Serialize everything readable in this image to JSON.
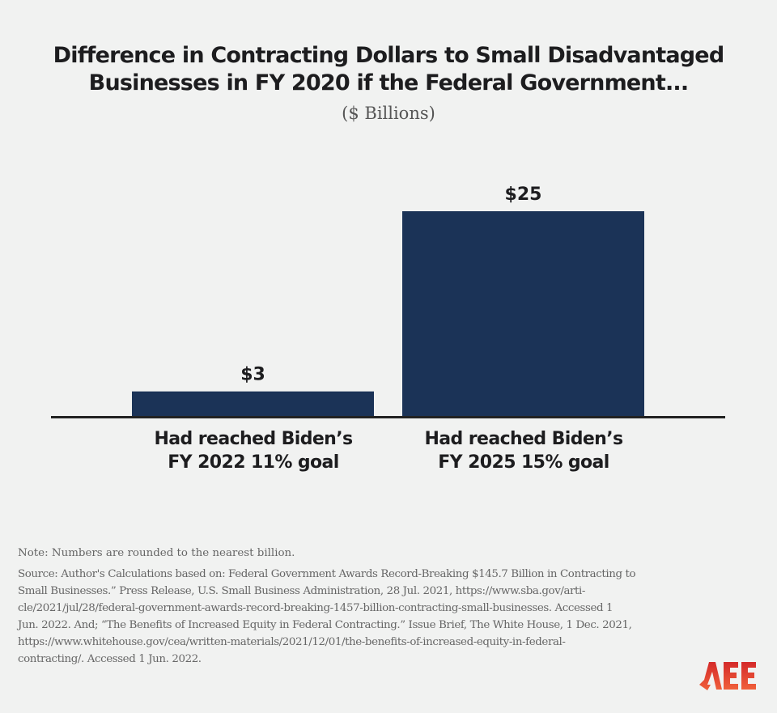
{
  "chart_data": {
    "type": "bar",
    "title": "Difference in Contracting Dollars  to Small Disadvantaged Businesses in FY 2020 if the Federal Government...",
    "title_lines": [
      "Difference in Contracting Dollars  to Small Disadvantaged",
      "Businesses in FY 2020 if the Federal Government..."
    ],
    "subtitle": "($ Billions)",
    "categories": [
      "Had reached Biden's FY 2022 11% goal",
      "Had reached Biden's FY 2025 15% goal"
    ],
    "category_lines": [
      [
        "Had reached Biden’s",
        "FY 2022 11% goal"
      ],
      [
        "Had reached Biden’s",
        "FY 2025 15% goal"
      ]
    ],
    "values": [
      3,
      25
    ],
    "data_labels": [
      "$3",
      "$25"
    ],
    "ylim": [
      0,
      25
    ],
    "grid": false,
    "bar_color": "#1b3357"
  },
  "note": "Note: Numbers are rounded to the nearest billion.",
  "source_lines": [
    "Source: Author's Calculations based on: Federal Government Awards Record-Breaking $145.7 Billion in Contracting to",
    "Small Businesses.” Press Release, U.S. Small Business Administration, 28 Jul. 2021, https://www.sba.gov/arti-",
    "cle/2021/jul/28/federal-government-awards-record-breaking-1457-billion-contracting-small-businesses. Accessed 1",
    "Jun. 2022. And; “The Benefits of Increased Equity in Federal Contracting.” Issue Brief, The White House, 1 Dec. 2021,",
    "https://www.whitehouse.gov/cea/written-materials/2021/12/01/the-benefits-of-increased-equity-in-federal-",
    "contracting/. Accessed 1 Jun. 2022."
  ],
  "logo": {
    "text": "AEE",
    "color": "#e0452b"
  }
}
